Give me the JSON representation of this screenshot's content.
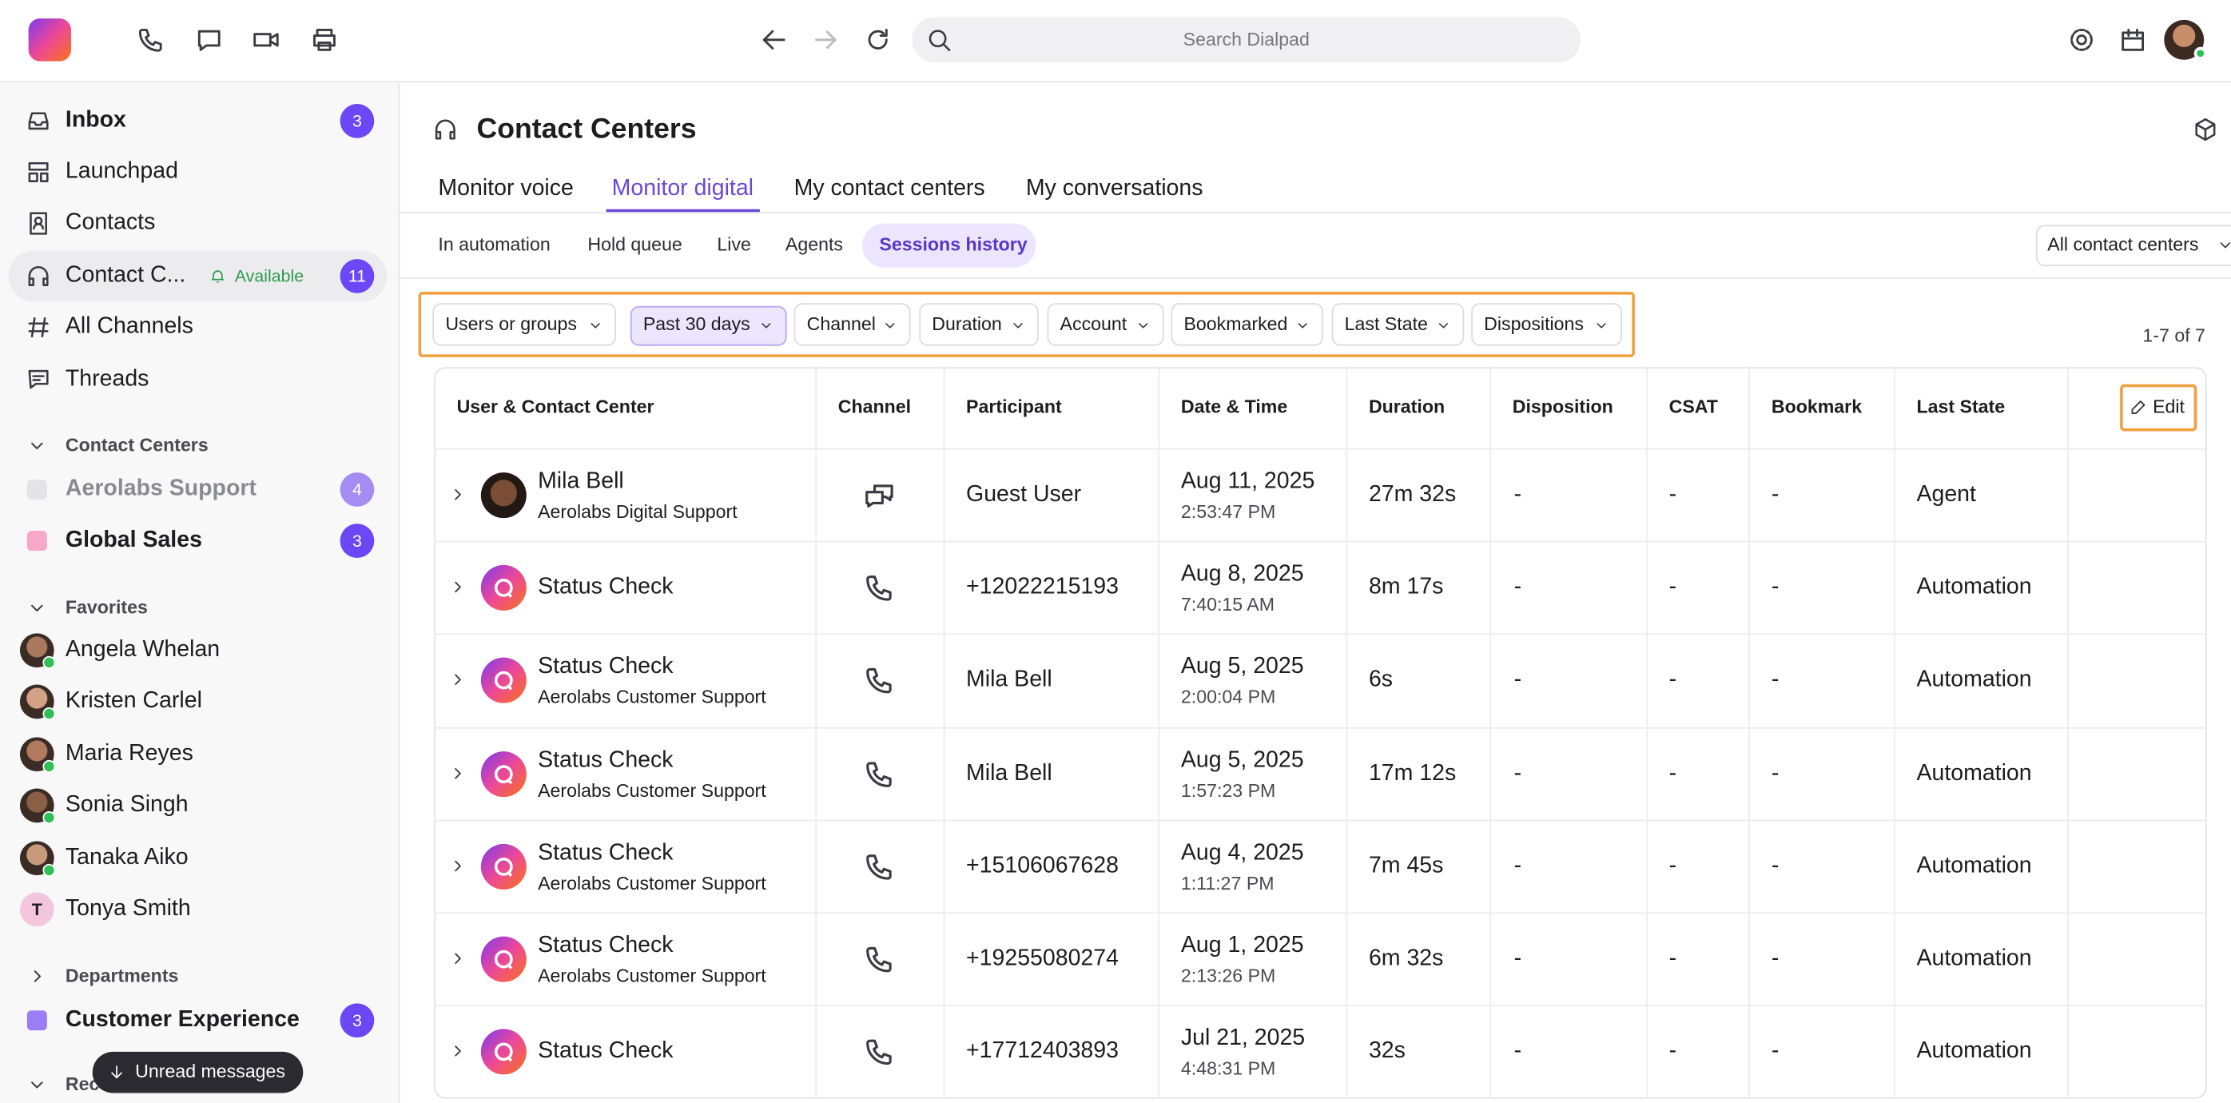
{
  "topbar": {
    "search_placeholder": "Search Dialpad"
  },
  "sidebar": {
    "main": [
      {
        "label": "Inbox",
        "badge": "3"
      },
      {
        "label": "Launchpad"
      },
      {
        "label": "Contacts"
      },
      {
        "label": "Contact C...",
        "status": "Available",
        "badge": "11"
      },
      {
        "label": "All Channels"
      },
      {
        "label": "Threads"
      }
    ],
    "contact_centers": {
      "title": "Contact Centers",
      "items": [
        {
          "label": "Aerolabs Support",
          "badge": "4",
          "color": "#e4e4e7"
        },
        {
          "label": "Global Sales",
          "badge": "3",
          "color": "#f7a8c9"
        }
      ]
    },
    "favorites": {
      "title": "Favorites",
      "items": [
        {
          "name": "Angela Whelan"
        },
        {
          "name": "Kristen Carlel"
        },
        {
          "name": "Maria Reyes"
        },
        {
          "name": "Sonia Singh"
        },
        {
          "name": "Tanaka Aiko"
        },
        {
          "name": "Tonya Smith",
          "initial": "T"
        }
      ]
    },
    "departments": {
      "title": "Departments",
      "items": [
        {
          "label": "Customer Experience",
          "badge": "3",
          "color": "#9b7df5"
        }
      ]
    },
    "recents_title": "Recents",
    "toast": "Unread messages"
  },
  "header": {
    "title": "Contact Centers"
  },
  "tabs": {
    "items": [
      "Monitor voice",
      "Monitor digital",
      "My contact centers",
      "My conversations"
    ],
    "active": 1
  },
  "subtabs": {
    "items": [
      "In automation",
      "Hold queue",
      "Live",
      "Agents",
      "Sessions history"
    ],
    "active": 4
  },
  "contact_center_select": "All contact centers",
  "filters": {
    "items": [
      "Users or groups",
      "Past 30 days",
      "Channel",
      "Duration",
      "Account",
      "Bookmarked",
      "Last State",
      "Dispositions"
    ],
    "active": 1
  },
  "pagination": "1-7 of 7",
  "table": {
    "columns": [
      "User & Contact Center",
      "Channel",
      "Participant",
      "Date & Time",
      "Duration",
      "Disposition",
      "CSAT",
      "Bookmark",
      "Last State"
    ],
    "edit_button": "Edit",
    "rows": [
      {
        "user": "Mila Bell",
        "center": "Aerolabs Digital Support",
        "channel": "chat",
        "participant": "Guest User",
        "date": "Aug 11, 2025",
        "time": "2:53:47 PM",
        "duration": "27m 32s",
        "disposition": "-",
        "csat": "-",
        "bookmark": "-",
        "last_state": "Agent"
      },
      {
        "user": "Status Check",
        "channel": "phone",
        "participant": "+12022215193",
        "date": "Aug 8, 2025",
        "time": "7:40:15 AM",
        "duration": "8m 17s",
        "disposition": "-",
        "csat": "-",
        "bookmark": "-",
        "last_state": "Automation"
      },
      {
        "user": "Status Check",
        "center": "Aerolabs Customer Support",
        "channel": "phone",
        "participant": "Mila Bell",
        "date": "Aug 5, 2025",
        "time": "2:00:04 PM",
        "duration": "6s",
        "disposition": "-",
        "csat": "-",
        "bookmark": "-",
        "last_state": "Automation"
      },
      {
        "user": "Status Check",
        "center": "Aerolabs Customer Support",
        "channel": "phone",
        "participant": "Mila Bell",
        "date": "Aug 5, 2025",
        "time": "1:57:23 PM",
        "duration": "17m 12s",
        "disposition": "-",
        "csat": "-",
        "bookmark": "-",
        "last_state": "Automation"
      },
      {
        "user": "Status Check",
        "center": "Aerolabs Customer Support",
        "channel": "phone",
        "participant": "+15106067628",
        "date": "Aug 4, 2025",
        "time": "1:11:27 PM",
        "duration": "7m 45s",
        "disposition": "-",
        "csat": "-",
        "bookmark": "-",
        "last_state": "Automation"
      },
      {
        "user": "Status Check",
        "center": "Aerolabs Customer Support",
        "channel": "phone",
        "participant": "+19255080274",
        "date": "Aug 1, 2025",
        "time": "2:13:26 PM",
        "duration": "6m 32s",
        "disposition": "-",
        "csat": "-",
        "bookmark": "-",
        "last_state": "Automation"
      },
      {
        "user": "Status Check",
        "channel": "phone",
        "participant": "+17712403893",
        "date": "Jul 21, 2025",
        "time": "4:48:31 PM",
        "duration": "32s",
        "disposition": "-",
        "csat": "-",
        "bookmark": "-",
        "last_state": "Automation"
      }
    ]
  }
}
